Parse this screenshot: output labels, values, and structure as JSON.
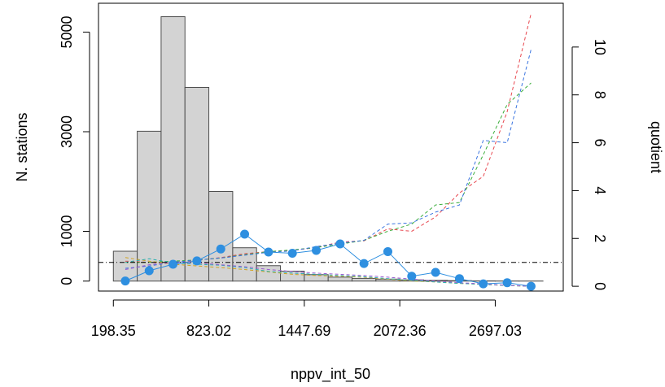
{
  "chart_data": {
    "type": "bar",
    "xlabel": "nppv_int_50",
    "ylabel_left": "N. stations",
    "ylabel_right": "quotient",
    "x_tick_labels": [
      "198.35",
      "823.02",
      "1447.69",
      "2072.36",
      "2697.03"
    ],
    "x_tick_values": [
      198.35,
      823.02,
      1447.69,
      2072.36,
      2697.03
    ],
    "xlim": [
      101,
      3142
    ],
    "y_left_ticks": [
      0,
      1000,
      3000,
      5000
    ],
    "ylim_left": [
      -200,
      5580
    ],
    "y_right_ticks": [
      0,
      2,
      4,
      6,
      8,
      10
    ],
    "ylim_right": [
      -0.2,
      11.83
    ],
    "bin_edges": [
      198.35,
      354.52,
      510.69,
      666.86,
      823.02,
      979.19,
      1135.36,
      1291.52,
      1447.69,
      1603.86,
      1760.02,
      1916.19,
      2072.36,
      2228.53,
      2384.69,
      2540.86,
      2697.03,
      2853.2,
      3009.36
    ],
    "counts": [
      600,
      3010,
      5310,
      3890,
      1800,
      670,
      310,
      200,
      130,
      80,
      55,
      40,
      25,
      15,
      10,
      5,
      3,
      2
    ],
    "quotient_points": {
      "x": [
        276.43,
        432.6,
        588.77,
        744.94,
        901.11,
        1057.27,
        1213.44,
        1369.61,
        1525.77,
        1681.94,
        1838.11,
        1994.28,
        2150.44,
        2306.61,
        2462.78,
        2618.95,
        2775.11,
        2931.28
      ],
      "y": [
        0.22,
        0.65,
        0.92,
        1.06,
        1.56,
        2.18,
        1.43,
        1.38,
        1.5,
        1.77,
        0.95,
        1.45,
        0.42,
        0.58,
        0.32,
        0.1,
        0.15,
        0.0
      ]
    },
    "reference_line": 1.0,
    "dashed_series": [
      {
        "color": "#e8474f",
        "values": [
          1.05,
          1.0,
          1.0,
          1.08,
          1.2,
          1.36,
          1.45,
          1.5,
          1.62,
          1.85,
          1.9,
          2.4,
          2.3,
          2.9,
          3.9,
          4.6,
          7.3,
          11.4
        ]
      },
      {
        "color": "#3aad3a",
        "values": [
          1.0,
          1.0,
          1.05,
          1.1,
          1.18,
          1.32,
          1.45,
          1.52,
          1.62,
          1.76,
          1.92,
          2.3,
          2.6,
          3.4,
          3.5,
          5.5,
          7.6,
          8.5
        ]
      },
      {
        "color": "#3a74e0",
        "values": [
          0.75,
          0.85,
          1.0,
          1.1,
          1.18,
          1.3,
          1.42,
          1.48,
          1.66,
          1.8,
          1.92,
          2.6,
          2.65,
          3.1,
          3.4,
          6.1,
          6.0,
          9.9
        ]
      },
      {
        "color": "#d2a31f",
        "values": [
          1.2,
          1.05,
          0.92,
          0.85,
          0.78,
          0.7,
          0.6,
          0.5,
          0.45,
          0.42,
          0.38,
          0.3,
          0.22,
          0.18,
          0.12,
          0.08,
          0.03,
          0.0
        ]
      },
      {
        "color": "#2ab0b0",
        "values": [
          1.0,
          1.15,
          0.98,
          0.92,
          0.88,
          0.78,
          0.62,
          0.55,
          0.5,
          0.45,
          0.4,
          0.32,
          0.25,
          0.18,
          0.12,
          0.08,
          0.03,
          0.0
        ]
      },
      {
        "color": "#9b59d0",
        "values": [
          0.7,
          0.9,
          1.0,
          0.98,
          0.9,
          0.82,
          0.7,
          0.62,
          0.55,
          0.5,
          0.45,
          0.38,
          0.3,
          0.22,
          0.15,
          0.1,
          0.04,
          0.0
        ]
      }
    ],
    "colors": {
      "bar_fill": "#d3d3d3",
      "bar_stroke": "#4d4d4d",
      "points": "#2e8fe0",
      "reference_line": "#000000"
    },
    "grid": false,
    "legend": "none"
  }
}
